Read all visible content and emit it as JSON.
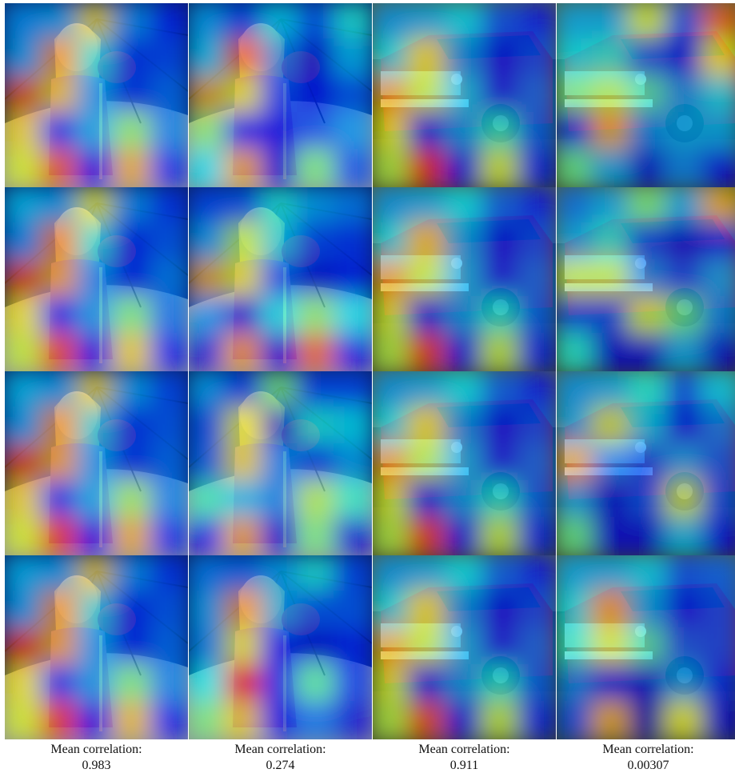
{
  "figure": {
    "columns": [
      {
        "caption_label": "Mean correlation:",
        "caption_value": "0.983",
        "subject": "girl-umbrella",
        "heat": [
          [
            [
              0.28,
              0.3,
              0.65,
              0.28,
              0.16
            ],
            [
              0.3,
              0.72,
              0.36,
              0.18,
              0.2
            ],
            [
              0.78,
              0.66,
              0.3,
              0.18,
              0.24
            ],
            [
              0.66,
              0.18,
              0.32,
              0.52,
              0.26
            ],
            [
              0.6,
              0.78,
              0.12,
              0.7,
              0.16
            ]
          ],
          [
            [
              0.33,
              0.3,
              0.62,
              0.28,
              0.18
            ],
            [
              0.28,
              0.74,
              0.36,
              0.16,
              0.22
            ],
            [
              0.8,
              0.7,
              0.28,
              0.16,
              0.26
            ],
            [
              0.64,
              0.16,
              0.3,
              0.5,
              0.24
            ],
            [
              0.58,
              0.8,
              0.12,
              0.66,
              0.14
            ]
          ],
          [
            [
              0.33,
              0.3,
              0.65,
              0.3,
              0.2
            ],
            [
              0.3,
              0.72,
              0.34,
              0.18,
              0.22
            ],
            [
              0.8,
              0.7,
              0.3,
              0.18,
              0.24
            ],
            [
              0.66,
              0.18,
              0.32,
              0.54,
              0.26
            ],
            [
              0.6,
              0.82,
              0.12,
              0.7,
              0.16
            ]
          ],
          [
            [
              0.32,
              0.3,
              0.66,
              0.28,
              0.18
            ],
            [
              0.3,
              0.72,
              0.34,
              0.16,
              0.22
            ],
            [
              0.82,
              0.7,
              0.3,
              0.16,
              0.24
            ],
            [
              0.64,
              0.18,
              0.3,
              0.5,
              0.26
            ],
            [
              0.6,
              0.82,
              0.12,
              0.68,
              0.14
            ]
          ]
        ]
      },
      {
        "caption_label": "Mean correlation:",
        "caption_value": "0.274",
        "subject": "girl-umbrella",
        "heat": [
          [
            [
              0.3,
              0.2,
              0.35,
              0.22,
              0.4
            ],
            [
              0.34,
              0.78,
              0.26,
              0.1,
              0.32
            ],
            [
              0.7,
              0.62,
              0.2,
              0.12,
              0.22
            ],
            [
              0.52,
              0.16,
              0.12,
              0.2,
              0.28
            ],
            [
              0.36,
              0.7,
              0.1,
              0.5,
              0.2
            ]
          ],
          [
            [
              0.2,
              0.22,
              0.4,
              0.3,
              0.26
            ],
            [
              0.3,
              0.56,
              0.34,
              0.2,
              0.18
            ],
            [
              0.7,
              0.62,
              0.22,
              0.1,
              0.16
            ],
            [
              0.28,
              0.1,
              0.38,
              0.52,
              0.36
            ],
            [
              0.1,
              0.72,
              0.1,
              0.78,
              0.12
            ]
          ],
          [
            [
              0.3,
              0.2,
              0.5,
              0.2,
              0.2
            ],
            [
              0.22,
              0.62,
              0.1,
              0.4,
              0.36
            ],
            [
              0.24,
              0.64,
              0.28,
              0.2,
              0.3
            ],
            [
              0.44,
              0.34,
              0.28,
              0.56,
              0.42
            ],
            [
              0.12,
              0.7,
              0.1,
              0.5,
              0.1
            ]
          ],
          [
            [
              0.26,
              0.24,
              0.3,
              0.4,
              0.2
            ],
            [
              0.3,
              0.72,
              0.3,
              0.22,
              0.22
            ],
            [
              0.28,
              0.62,
              0.14,
              0.1,
              0.16
            ],
            [
              0.38,
              0.86,
              0.18,
              0.46,
              0.18
            ],
            [
              0.5,
              0.66,
              0.12,
              0.24,
              0.1
            ]
          ]
        ]
      },
      {
        "caption_label": "Mean correlation:",
        "caption_value": "0.911",
        "subject": "pickup-truck",
        "heat": [
          [
            [
              0.28,
              0.3,
              0.35,
              0.2,
              0.14
            ],
            [
              0.36,
              0.62,
              0.28,
              0.12,
              0.2
            ],
            [
              0.72,
              0.58,
              0.34,
              0.16,
              0.24
            ],
            [
              0.62,
              0.14,
              0.28,
              0.42,
              0.22
            ],
            [
              0.56,
              0.84,
              0.12,
              0.6,
              0.16
            ]
          ],
          [
            [
              0.28,
              0.3,
              0.36,
              0.22,
              0.14
            ],
            [
              0.36,
              0.66,
              0.3,
              0.12,
              0.2
            ],
            [
              0.72,
              0.58,
              0.32,
              0.16,
              0.24
            ],
            [
              0.6,
              0.14,
              0.28,
              0.4,
              0.22
            ],
            [
              0.56,
              0.82,
              0.12,
              0.58,
              0.16
            ]
          ],
          [
            [
              0.28,
              0.3,
              0.36,
              0.22,
              0.14
            ],
            [
              0.36,
              0.62,
              0.28,
              0.12,
              0.2
            ],
            [
              0.72,
              0.56,
              0.32,
              0.16,
              0.24
            ],
            [
              0.6,
              0.14,
              0.28,
              0.4,
              0.22
            ],
            [
              0.56,
              0.82,
              0.12,
              0.58,
              0.16
            ]
          ],
          [
            [
              0.28,
              0.3,
              0.36,
              0.22,
              0.14
            ],
            [
              0.36,
              0.62,
              0.28,
              0.12,
              0.2
            ],
            [
              0.7,
              0.58,
              0.32,
              0.16,
              0.24
            ],
            [
              0.6,
              0.14,
              0.28,
              0.4,
              0.22
            ],
            [
              0.56,
              0.8,
              0.12,
              0.58,
              0.16
            ]
          ]
        ]
      },
      {
        "caption_label": "Mean correlation:",
        "caption_value": "0.00307",
        "subject": "pickup-truck",
        "heat": [
          [
            [
              0.3,
              0.3,
              0.6,
              0.2,
              0.78
            ],
            [
              0.36,
              0.4,
              0.22,
              0.12,
              0.62
            ],
            [
              0.5,
              0.56,
              0.44,
              0.28,
              0.36
            ],
            [
              0.16,
              0.7,
              0.26,
              0.3,
              0.3
            ],
            [
              0.48,
              0.3,
              0.1,
              0.26,
              0.12
            ]
          ],
          [
            [
              0.24,
              0.3,
              0.5,
              0.3,
              0.7
            ],
            [
              0.3,
              0.4,
              0.2,
              0.1,
              0.16
            ],
            [
              0.58,
              0.58,
              0.28,
              0.2,
              0.3
            ],
            [
              0.2,
              0.2,
              0.6,
              0.48,
              0.26
            ],
            [
              0.4,
              0.1,
              0.1,
              0.3,
              0.1
            ]
          ],
          [
            [
              0.28,
              0.3,
              0.4,
              0.2,
              0.34
            ],
            [
              0.3,
              0.58,
              0.34,
              0.14,
              0.26
            ],
            [
              0.7,
              0.26,
              0.2,
              0.3,
              0.22
            ],
            [
              0.3,
              0.1,
              0.2,
              0.6,
              0.2
            ],
            [
              0.48,
              0.1,
              0.1,
              0.32,
              0.12
            ]
          ],
          [
            [
              0.3,
              0.3,
              0.34,
              0.2,
              0.22
            ],
            [
              0.36,
              0.7,
              0.3,
              0.14,
              0.2
            ],
            [
              0.42,
              0.6,
              0.44,
              0.22,
              0.2
            ],
            [
              0.26,
              0.12,
              0.1,
              0.3,
              0.16
            ],
            [
              0.2,
              0.7,
              0.06,
              0.62,
              0.1
            ]
          ]
        ]
      }
    ]
  }
}
